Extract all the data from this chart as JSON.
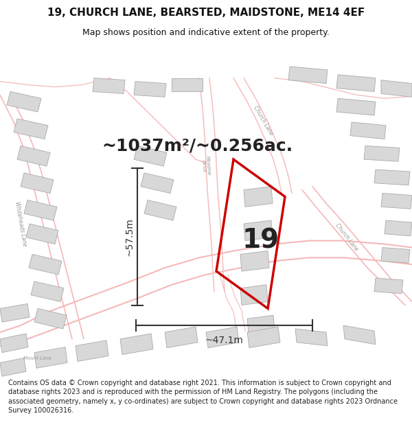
{
  "title_line1": "19, CHURCH LANE, BEARSTED, MAIDSTONE, ME14 4EF",
  "title_line2": "Map shows position and indicative extent of the property.",
  "area_text": "~1037m²/~0.256ac.",
  "label_number": "19",
  "dim_width": "~47.1m",
  "dim_height": "~57.5m",
  "footer_text": "Contains OS data © Crown copyright and database right 2021. This information is subject to Crown copyright and database rights 2023 and is reproduced with the permission of HM Land Registry. The polygons (including the associated geometry, namely x, y co-ordinates) are subject to Crown copyright and database rights 2023 Ordnance Survey 100026316.",
  "map_bg": "#f7f7f7",
  "road_color": "#f5b8b8",
  "road_lw_main": 1.2,
  "building_fill": "#d8d8d8",
  "building_edge": "#aaaaaa",
  "plot_color": "#cc0000",
  "dim_color": "#333333",
  "text_color": "#222222",
  "street_label_color": "#999999",
  "title_color": "#111111",
  "footer_color": "#222222",
  "title_fontsize": 11,
  "subtitle_fontsize": 9,
  "area_fontsize": 18,
  "number_fontsize": 28,
  "dim_fontsize": 10,
  "footer_fontsize": 7
}
